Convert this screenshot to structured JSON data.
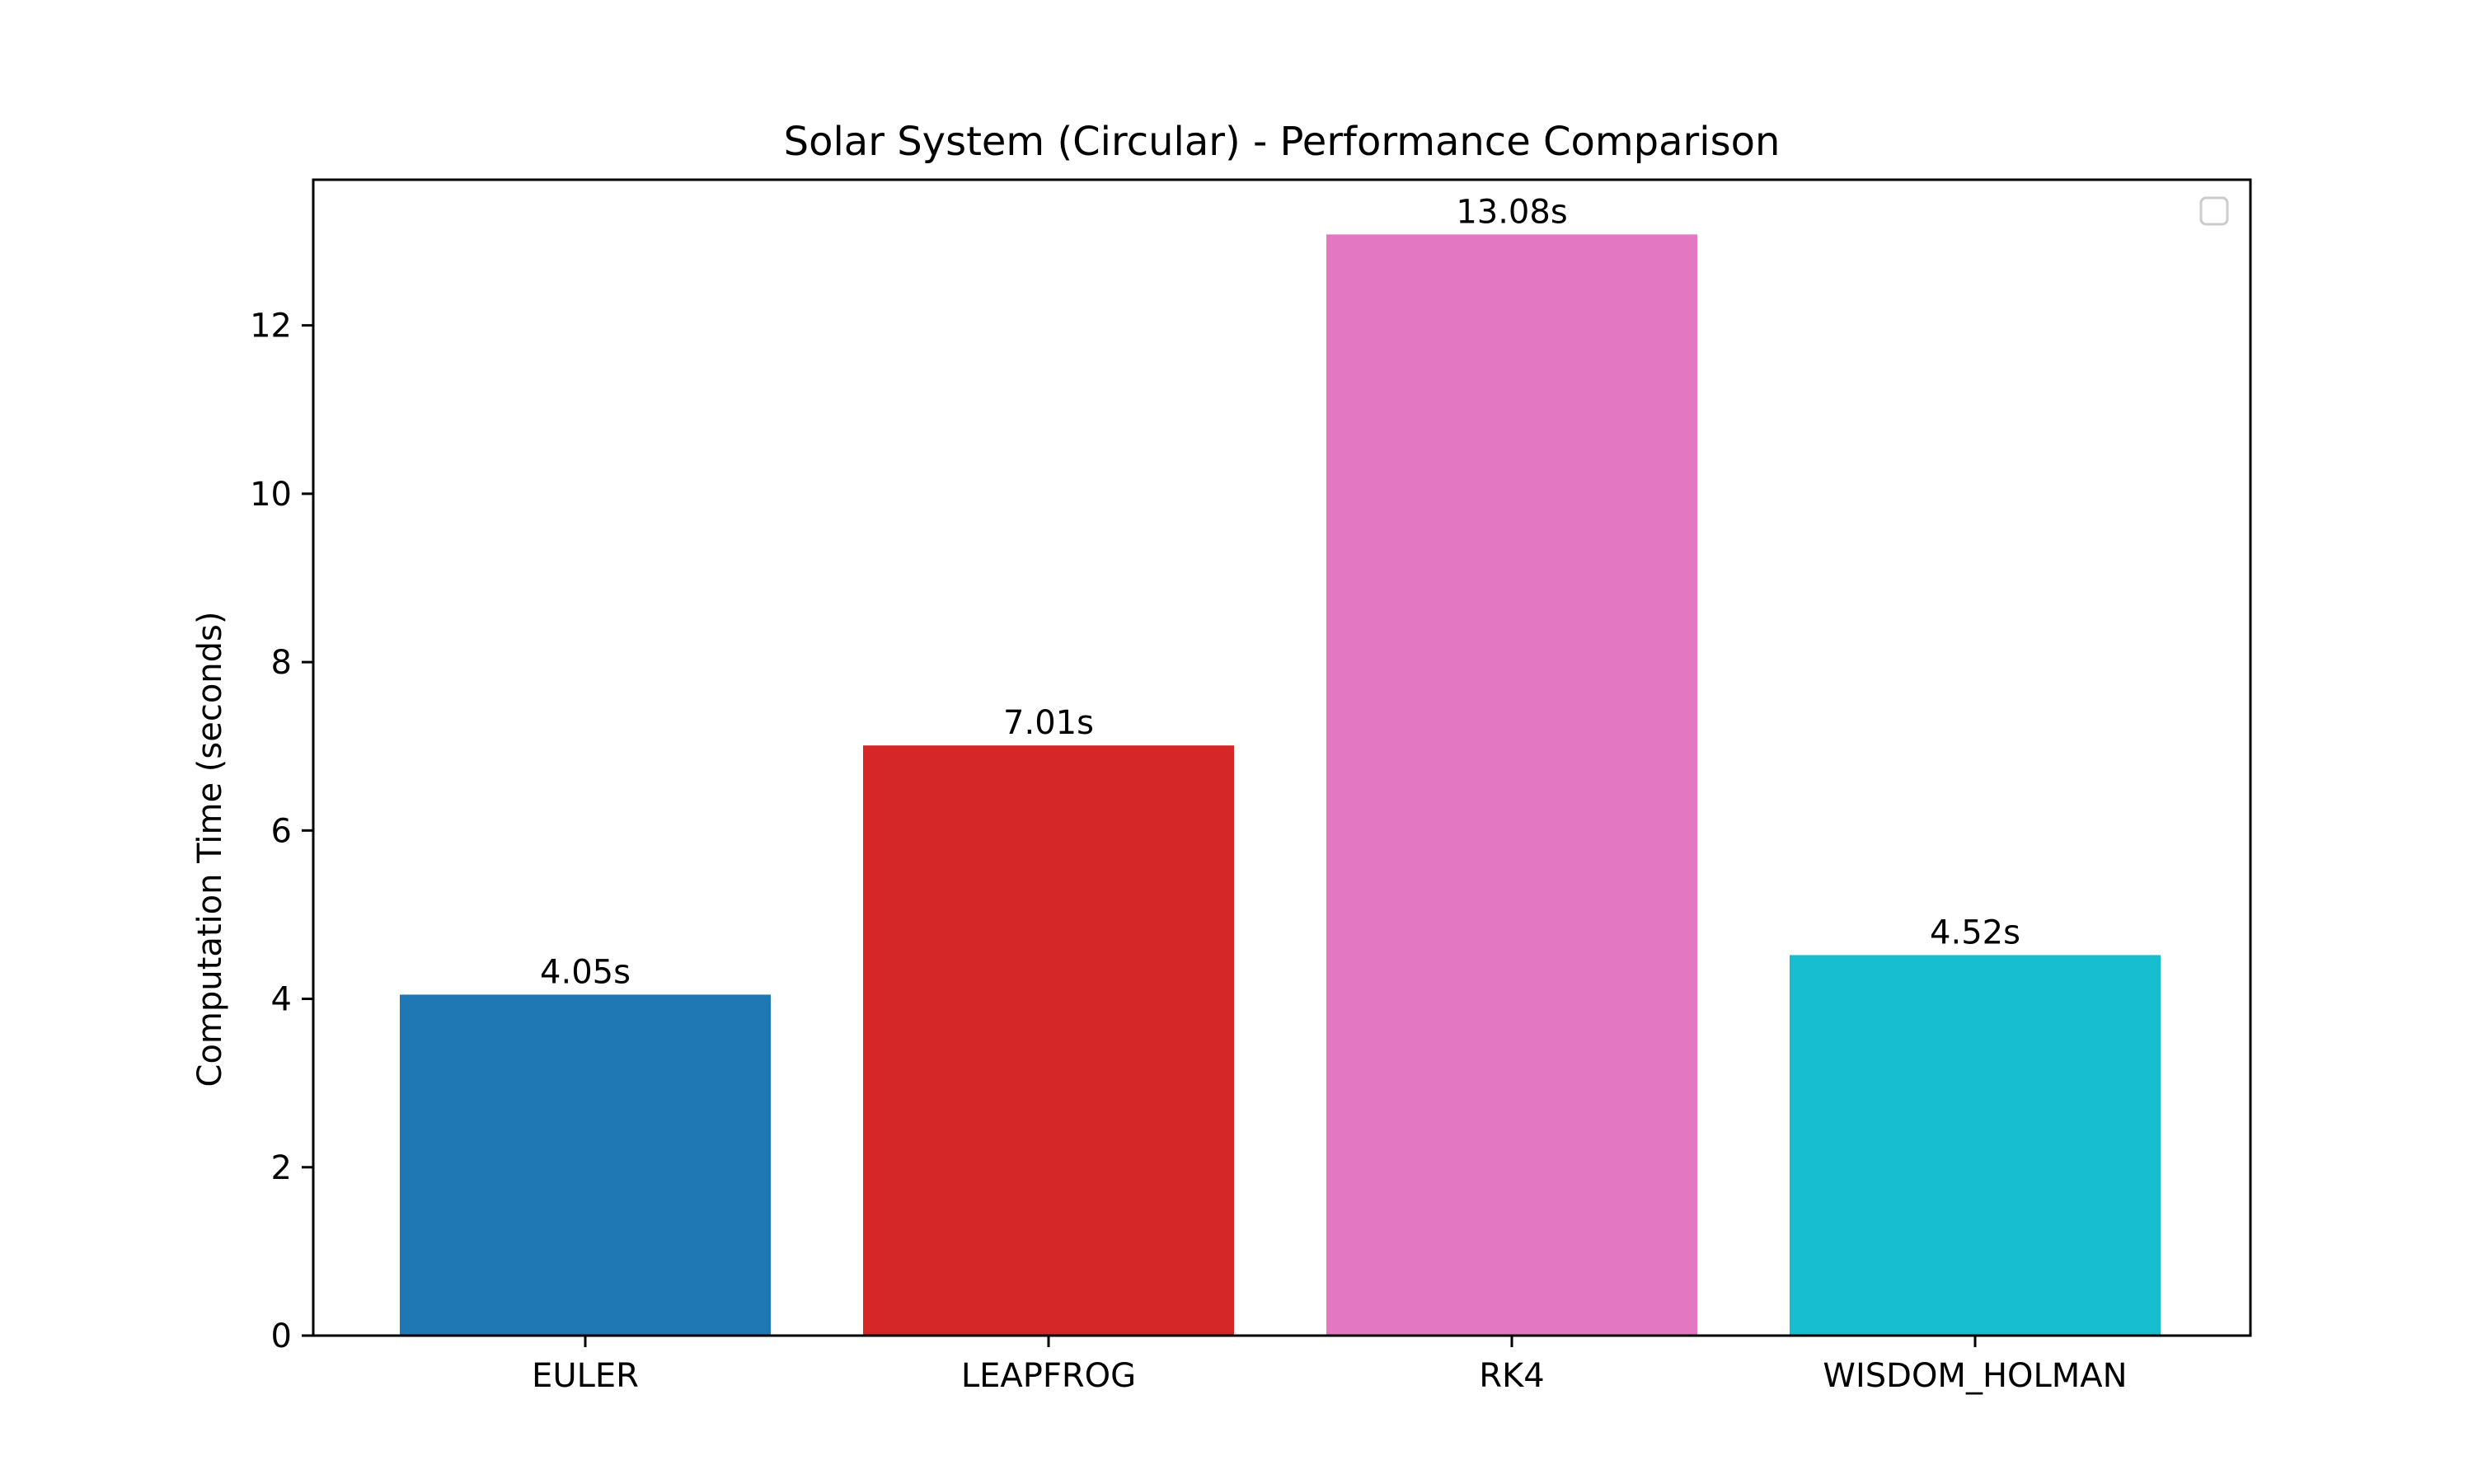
{
  "chart_data": {
    "type": "bar",
    "title": "Solar System (Circular) - Performance Comparison",
    "xlabel": "",
    "ylabel": "Computation Time (seconds)",
    "categories": [
      "EULER",
      "LEAPFROG",
      "RK4",
      "WISDOM_HOLMAN"
    ],
    "values": [
      4.05,
      7.01,
      13.08,
      4.52
    ],
    "data_labels": [
      "4.05s",
      "7.01s",
      "13.08s",
      "4.52s"
    ],
    "colors": [
      "#1f77b4",
      "#d62728",
      "#e377c2",
      "#17becf"
    ],
    "ylim": [
      0,
      13.73
    ],
    "yticks": [
      0,
      2,
      4,
      6,
      8,
      10,
      12
    ],
    "grid": false,
    "legend": {
      "placement": "top-right",
      "entries": []
    }
  }
}
